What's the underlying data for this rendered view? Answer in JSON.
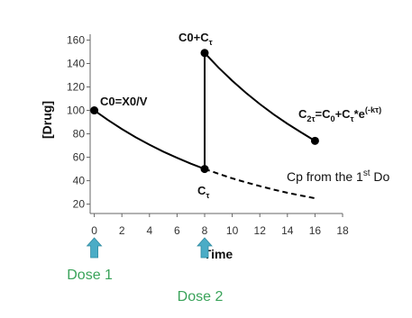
{
  "chart_data": {
    "type": "line",
    "x_label": "Time",
    "y_label": "[Drug]",
    "xlim": [
      -0.3,
      18
    ],
    "xticks": [
      0,
      2,
      4,
      6,
      8,
      10,
      12,
      14,
      16,
      18
    ],
    "ylim": [
      12,
      165
    ],
    "yticks": [
      20,
      40,
      60,
      80,
      100,
      120,
      140,
      160
    ],
    "series": [
      {
        "color": "#000000",
        "style": "solid",
        "x": [
          0,
          1,
          2,
          3,
          4,
          5,
          6,
          7,
          8,
          8,
          9,
          10,
          11,
          12,
          13,
          14,
          15,
          16
        ],
        "values": [
          100,
          91.7,
          84.1,
          77.1,
          70.7,
          64.8,
          59.5,
          54.5,
          50,
          149,
          136.6,
          125.3,
          114.9,
          105.4,
          96.6,
          88.6,
          81.2,
          74
        ]
      },
      {
        "color": "#000000",
        "style": "dashed",
        "x": [
          8,
          9,
          10,
          11,
          12,
          13,
          14,
          15,
          16
        ],
        "values": [
          50,
          45.9,
          42,
          38.6,
          35.4,
          32.4,
          29.7,
          27.3,
          25
        ]
      },
      {
        "color": "#000000",
        "style": "markers",
        "x": [
          0,
          8,
          8,
          16
        ],
        "values": [
          100,
          50,
          149,
          74
        ]
      }
    ],
    "annotations": [
      {
        "parts": [
          {
            "text": "C0=X0/V"
          }
        ]
      },
      {
        "parts": [
          {
            "text": "C0+C"
          },
          {
            "text": "τ",
            "shift": "sub"
          }
        ]
      },
      {
        "parts": [
          {
            "text": "C"
          },
          {
            "text": "τ",
            "shift": "sub"
          }
        ]
      },
      {
        "parts": [
          {
            "text": "C"
          },
          {
            "text": "2τ",
            "shift": "sub"
          },
          {
            "text": "=C"
          },
          {
            "text": "0",
            "shift": "sub"
          },
          {
            "text": "+C"
          },
          {
            "text": "τ",
            "shift": "sub"
          },
          {
            "text": "*e"
          },
          {
            "text": "(-kτ)",
            "shift": "sup"
          }
        ]
      },
      {
        "parts": [
          {
            "text": "Cp from the 1"
          },
          {
            "text": "st",
            "shift": "sup"
          },
          {
            "text": " Do"
          }
        ]
      }
    ],
    "doses": [
      {
        "x": 0,
        "label": "Dose 1"
      },
      {
        "x": 8,
        "label": "Dose 2"
      }
    ],
    "dose_arrow_color": "#4bacc6",
    "dose_label_color": "#3aa35a"
  }
}
